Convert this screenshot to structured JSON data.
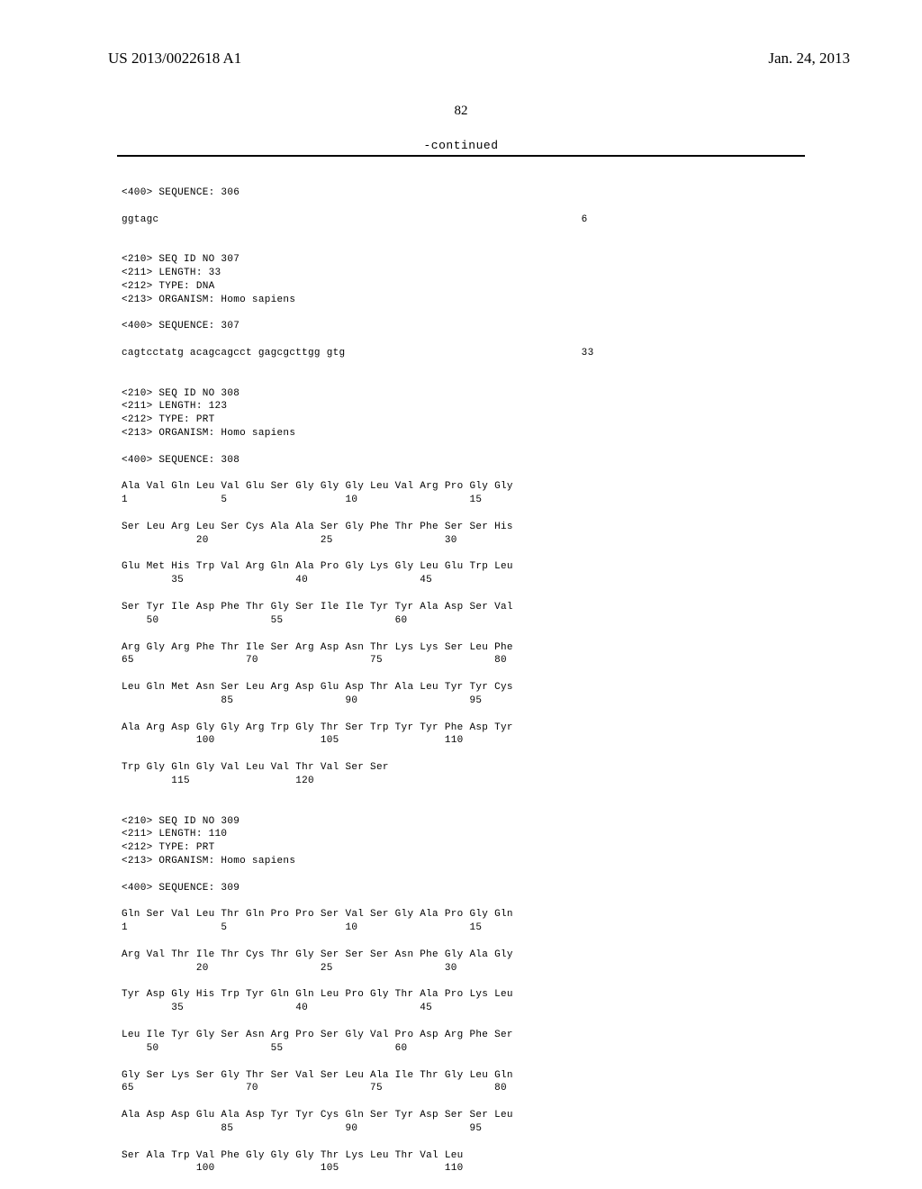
{
  "header": {
    "publication_number": "US 2013/0022618 A1",
    "publication_date": "Jan. 24, 2013"
  },
  "page_number": "82",
  "continued_label": "-continued",
  "sequences": {
    "seq306": {
      "header": "<400> SEQUENCE: 306",
      "body": "ggtagc                                                                    6"
    },
    "seq307": {
      "meta": "<210> SEQ ID NO 307\n<211> LENGTH: 33\n<212> TYPE: DNA\n<213> ORGANISM: Homo sapiens",
      "header": "<400> SEQUENCE: 307",
      "body": "cagtcctatg acagcagcct gagcgcttgg gtg                                      33"
    },
    "seq308": {
      "meta": "<210> SEQ ID NO 308\n<211> LENGTH: 123\n<212> TYPE: PRT\n<213> ORGANISM: Homo sapiens",
      "header": "<400> SEQUENCE: 308",
      "body": "Ala Val Gln Leu Val Glu Ser Gly Gly Gly Leu Val Arg Pro Gly Gly\n1               5                   10                  15\n\nSer Leu Arg Leu Ser Cys Ala Ala Ser Gly Phe Thr Phe Ser Ser His\n            20                  25                  30\n\nGlu Met His Trp Val Arg Gln Ala Pro Gly Lys Gly Leu Glu Trp Leu\n        35                  40                  45\n\nSer Tyr Ile Asp Phe Thr Gly Ser Ile Ile Tyr Tyr Ala Asp Ser Val\n    50                  55                  60\n\nArg Gly Arg Phe Thr Ile Ser Arg Asp Asn Thr Lys Lys Ser Leu Phe\n65                  70                  75                  80\n\nLeu Gln Met Asn Ser Leu Arg Asp Glu Asp Thr Ala Leu Tyr Tyr Cys\n                85                  90                  95\n\nAla Arg Asp Gly Gly Arg Trp Gly Thr Ser Trp Tyr Tyr Phe Asp Tyr\n            100                 105                 110\n\nTrp Gly Gln Gly Val Leu Val Thr Val Ser Ser\n        115                 120"
    },
    "seq309": {
      "meta": "<210> SEQ ID NO 309\n<211> LENGTH: 110\n<212> TYPE: PRT\n<213> ORGANISM: Homo sapiens",
      "header": "<400> SEQUENCE: 309",
      "body": "Gln Ser Val Leu Thr Gln Pro Pro Ser Val Ser Gly Ala Pro Gly Gln\n1               5                   10                  15\n\nArg Val Thr Ile Thr Cys Thr Gly Ser Ser Ser Asn Phe Gly Ala Gly\n            20                  25                  30\n\nTyr Asp Gly His Trp Tyr Gln Gln Leu Pro Gly Thr Ala Pro Lys Leu\n        35                  40                  45\n\nLeu Ile Tyr Gly Ser Asn Arg Pro Ser Gly Val Pro Asp Arg Phe Ser\n    50                  55                  60\n\nGly Ser Lys Ser Gly Thr Ser Val Ser Leu Ala Ile Thr Gly Leu Gln\n65                  70                  75                  80\n\nAla Asp Asp Glu Ala Asp Tyr Tyr Cys Gln Ser Tyr Asp Ser Ser Leu\n                85                  90                  95\n\nSer Ala Trp Val Phe Gly Gly Gly Thr Lys Leu Thr Val Leu\n            100                 105                 110"
    }
  }
}
